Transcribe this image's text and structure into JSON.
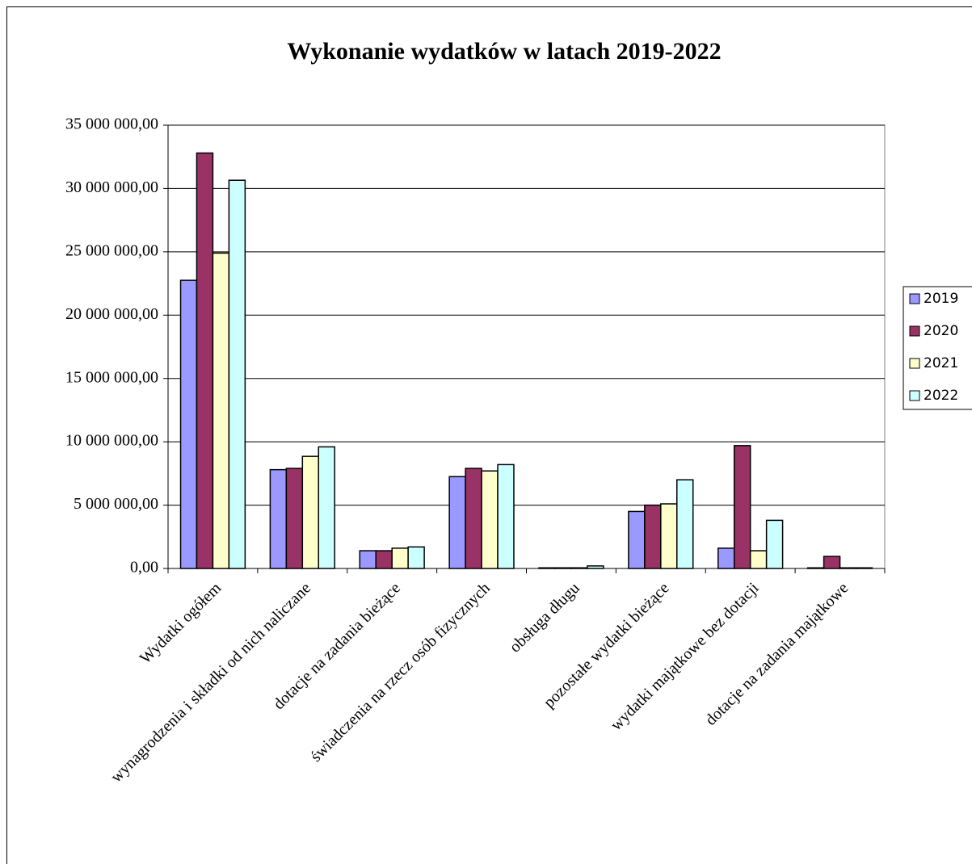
{
  "chart_data": {
    "type": "bar",
    "title": "Wykonanie wydatków w latach 2019-2022",
    "categories": [
      "Wydatki ogółem",
      "wynagrodzenia i składki od nich naliczane",
      "dotacje na zadania bieżące",
      "świadczenia na rzecz osób fizycznych",
      "obsługa długu",
      "pozostałe wydatki bieżące",
      "wydatki majątkowe bez dotacji",
      "dotacje na zadania majątkowe"
    ],
    "series": [
      {
        "name": "2019",
        "color": "#9999ff",
        "values": [
          22750000,
          7800000,
          1400000,
          7250000,
          50000,
          4500000,
          1600000,
          50000
        ]
      },
      {
        "name": "2020",
        "color": "#993366",
        "values": [
          32800000,
          7900000,
          1400000,
          7900000,
          50000,
          5000000,
          9700000,
          950000
        ]
      },
      {
        "name": "2021",
        "color": "#ffffcc",
        "values": [
          24900000,
          8850000,
          1600000,
          7700000,
          50000,
          5100000,
          1400000,
          50000
        ]
      },
      {
        "name": "2022",
        "color": "#ccffff",
        "values": [
          30650000,
          9600000,
          1700000,
          8200000,
          200000,
          7000000,
          3800000,
          50000
        ]
      }
    ],
    "ylim": [
      0,
      35000000
    ],
    "yticks": [
      {
        "value": 0,
        "label": "0,00"
      },
      {
        "value": 5000000,
        "label": "5 000 000,00"
      },
      {
        "value": 10000000,
        "label": "10 000 000,00"
      },
      {
        "value": 15000000,
        "label": "15 000 000,00"
      },
      {
        "value": 20000000,
        "label": "20 000 000,00"
      },
      {
        "value": 25000000,
        "label": "25 000 000,00"
      },
      {
        "value": 30000000,
        "label": "30 000 000,00"
      },
      {
        "value": 35000000,
        "label": "35 000 000,00"
      }
    ],
    "grid": true,
    "legend": "right"
  }
}
